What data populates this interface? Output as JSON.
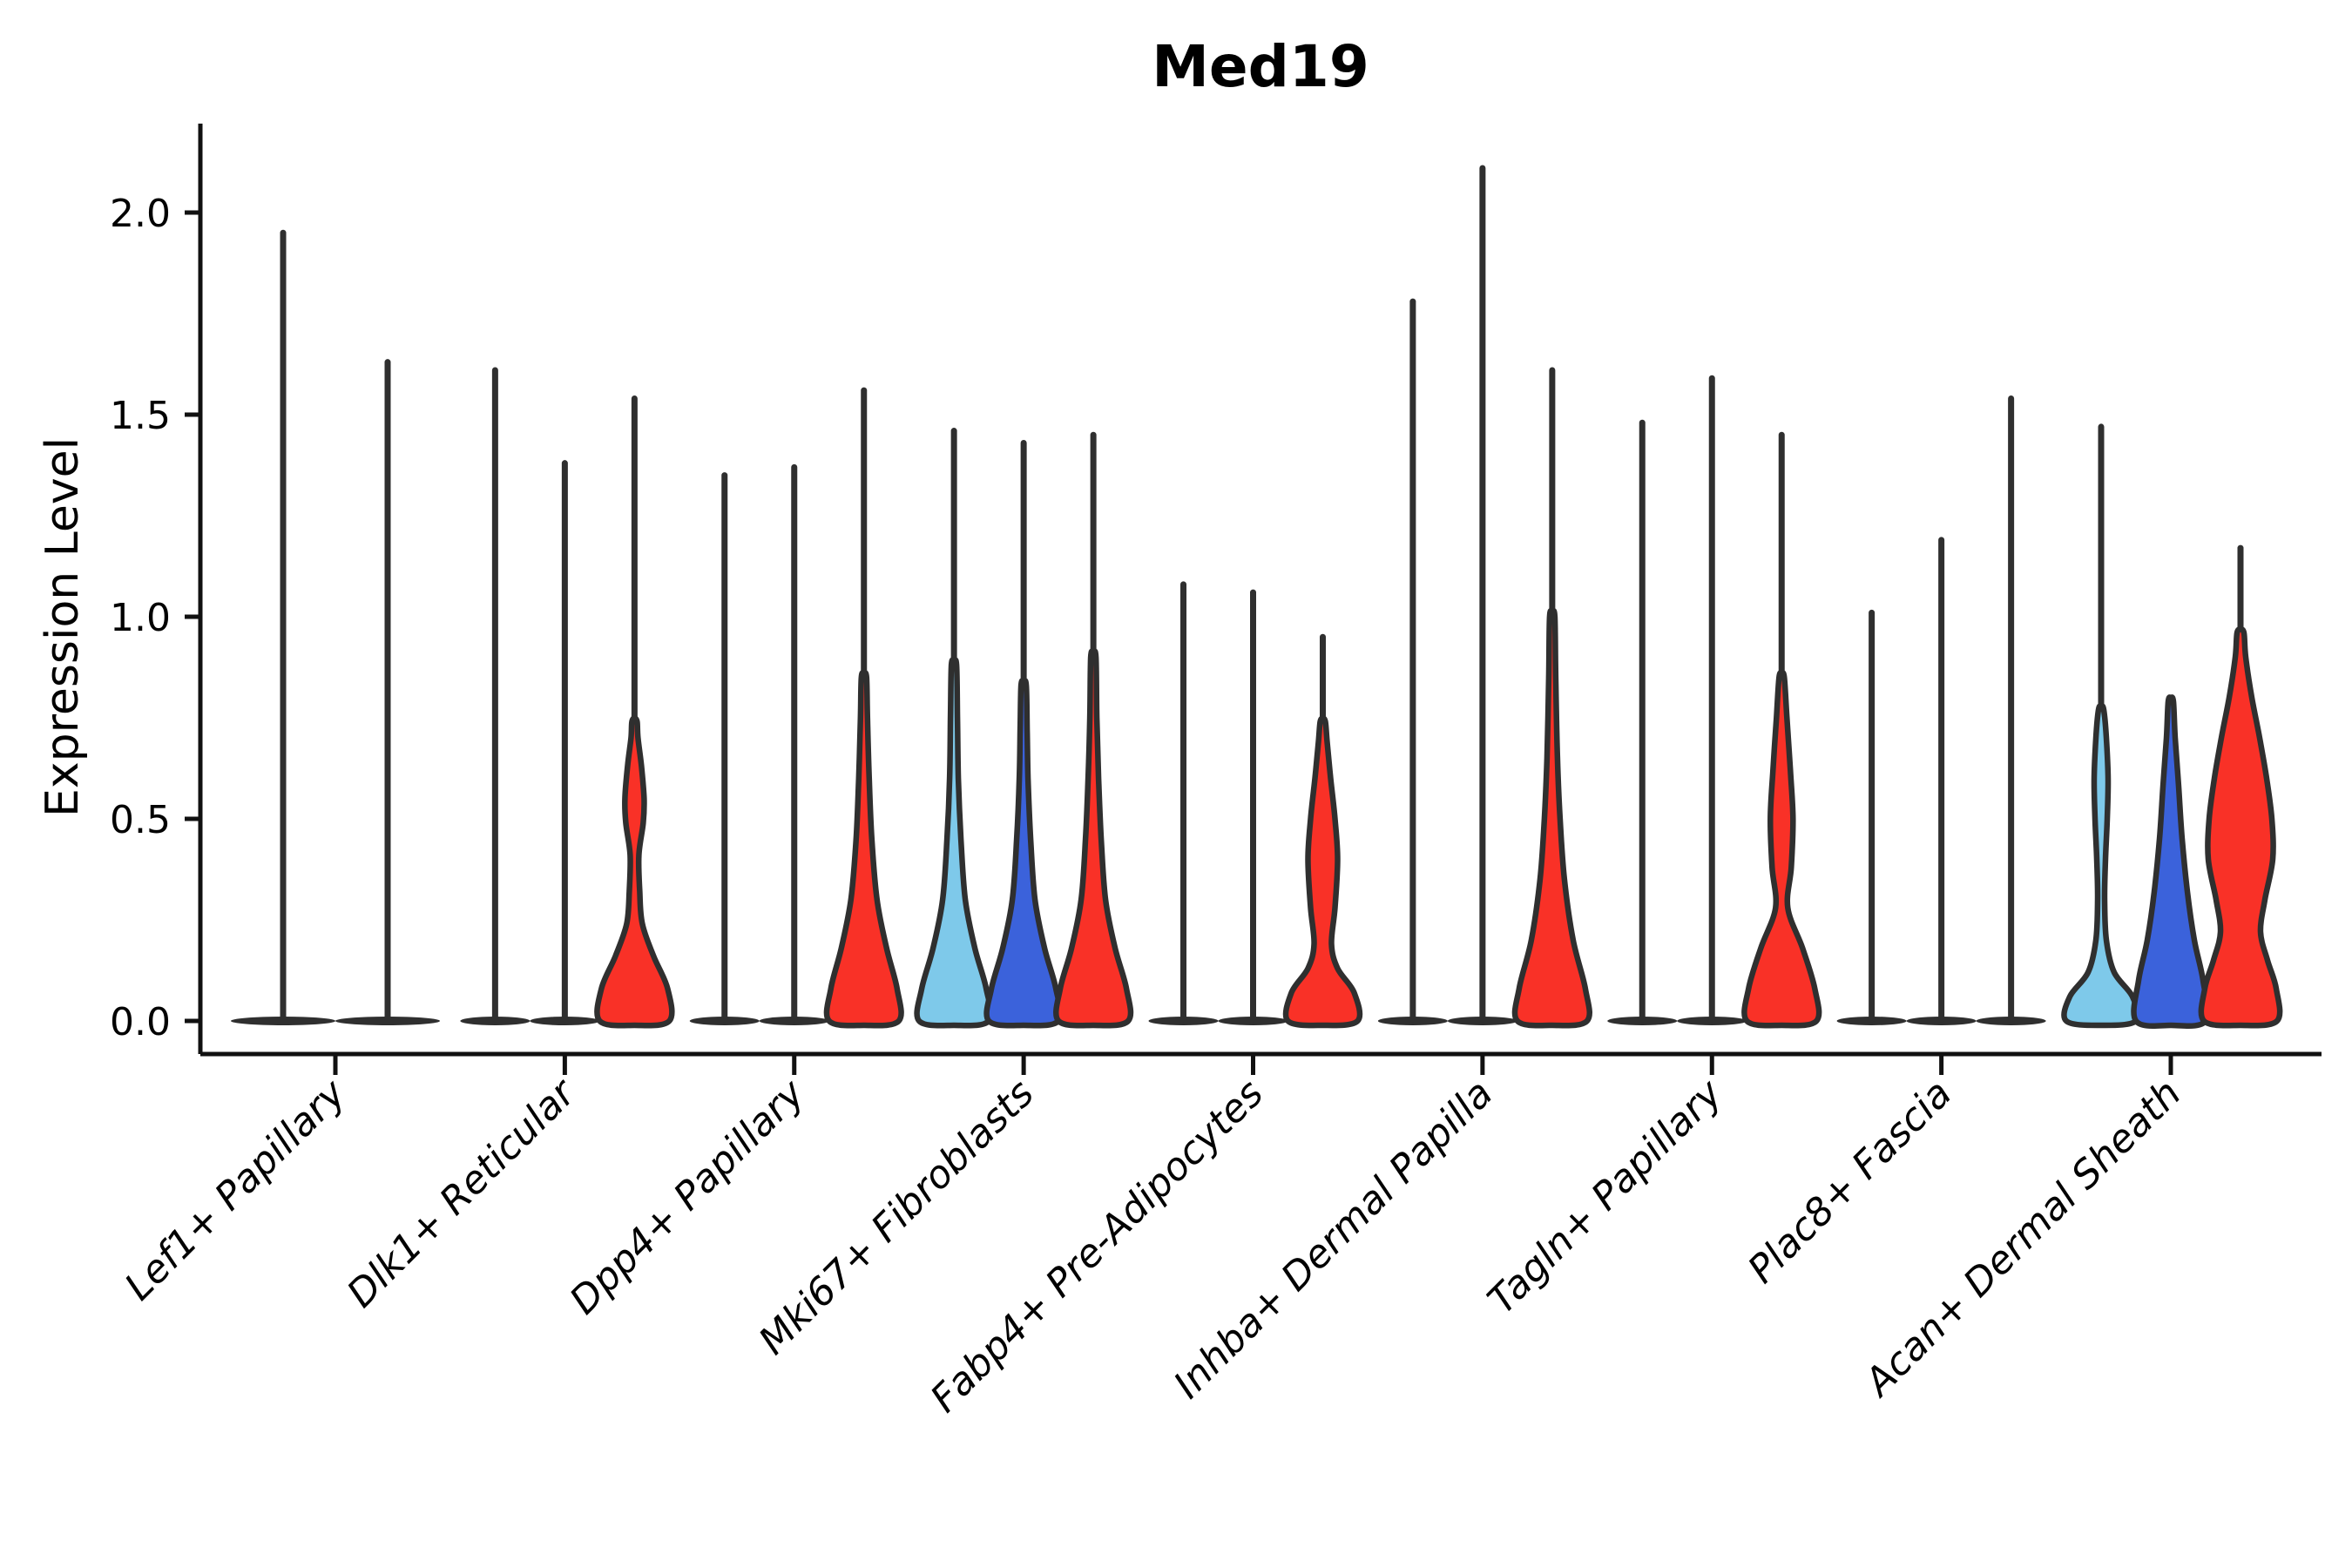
{
  "chart_data": {
    "type": "violin",
    "title": "Med19",
    "ylabel": "Expression Level",
    "xlabel": "",
    "yticks": [
      0.0,
      0.5,
      1.0,
      1.5,
      2.0
    ],
    "ylim": [
      -0.08,
      2.22
    ],
    "grid": false,
    "legend_position": "none",
    "colors": {
      "red": "#F93127",
      "skyblue": "#7EC9EA",
      "blue": "#3B62DB",
      "edge": "#2F2F2F",
      "axis": "#111111"
    },
    "categories": [
      "Lef1+ Papillary",
      "Dlk1+ Reticular",
      "Dpp4+ Papillary",
      "Mki67+ Fibroblasts",
      "Fabp4+ Pre-Adipocytes",
      "Inhba+ Dermal Papilla",
      "Tagln+ Papillary",
      "Plac8+ Fascia",
      "Acan+ Dermal Sheath"
    ],
    "groups": [
      {
        "category": "Lef1+ Papillary",
        "violins": [
          {
            "offset": -60,
            "max": 1.95,
            "fill": null,
            "base_hw": 60,
            "profile": null
          },
          {
            "offset": 60,
            "max": 1.63,
            "fill": null,
            "base_hw": 60,
            "profile": null
          }
        ]
      },
      {
        "category": "Dlk1+ Reticular",
        "violins": [
          {
            "offset": -80,
            "max": 1.61,
            "fill": null,
            "base_hw": 40,
            "profile": null
          },
          {
            "offset": 0,
            "max": 1.38,
            "fill": null,
            "base_hw": 40,
            "profile": null
          },
          {
            "offset": 80,
            "max": 1.54,
            "fill": "red",
            "base_hw": 40,
            "profile": [
              [
                0,
                40
              ],
              [
                0.08,
                38
              ],
              [
                0.16,
                22
              ],
              [
                0.24,
                9
              ],
              [
                0.32,
                6
              ],
              [
                0.41,
                5
              ],
              [
                0.49,
                10
              ],
              [
                0.55,
                11
              ],
              [
                0.63,
                8
              ],
              [
                0.7,
                4
              ],
              [
                0.74,
                3
              ]
            ]
          }
        ]
      },
      {
        "category": "Dpp4+ Papillary",
        "violins": [
          {
            "offset": -80,
            "max": 1.35,
            "fill": null,
            "base_hw": 40,
            "profile": null
          },
          {
            "offset": 0,
            "max": 1.37,
            "fill": null,
            "base_hw": 40,
            "profile": null
          },
          {
            "offset": 80,
            "max": 1.56,
            "fill": "red",
            "base_hw": 40,
            "profile": [
              [
                0,
                40
              ],
              [
                0.08,
                38
              ],
              [
                0.18,
                26
              ],
              [
                0.3,
                15
              ],
              [
                0.45,
                9
              ],
              [
                0.6,
                6
              ],
              [
                0.75,
                4
              ],
              [
                0.85,
                3
              ]
            ]
          }
        ]
      },
      {
        "category": "Mki67+ Fibroblasts",
        "violins": [
          {
            "offset": -80,
            "max": 1.46,
            "fill": "skyblue",
            "base_hw": 40,
            "profile": [
              [
                0,
                40
              ],
              [
                0.08,
                37
              ],
              [
                0.18,
                24
              ],
              [
                0.3,
                13
              ],
              [
                0.45,
                8
              ],
              [
                0.6,
                5
              ],
              [
                0.75,
                4
              ],
              [
                0.88,
                3
              ]
            ]
          },
          {
            "offset": 0,
            "max": 1.43,
            "fill": "blue",
            "base_hw": 40,
            "profile": [
              [
                0,
                40
              ],
              [
                0.08,
                37
              ],
              [
                0.18,
                24
              ],
              [
                0.3,
                13
              ],
              [
                0.45,
                8
              ],
              [
                0.6,
                5
              ],
              [
                0.72,
                4
              ],
              [
                0.83,
                3
              ]
            ]
          },
          {
            "offset": 80,
            "max": 1.45,
            "fill": "red",
            "base_hw": 40,
            "profile": [
              [
                0,
                40
              ],
              [
                0.08,
                38
              ],
              [
                0.18,
                25
              ],
              [
                0.3,
                14
              ],
              [
                0.45,
                9
              ],
              [
                0.6,
                6
              ],
              [
                0.75,
                4
              ],
              [
                0.9,
                3
              ]
            ]
          }
        ]
      },
      {
        "category": "Fabp4+ Pre-Adipocytes",
        "violins": [
          {
            "offset": -80,
            "max": 1.08,
            "fill": null,
            "base_hw": 40,
            "profile": null
          },
          {
            "offset": 0,
            "max": 1.06,
            "fill": null,
            "base_hw": 40,
            "profile": null
          },
          {
            "offset": 80,
            "max": 0.95,
            "fill": "red",
            "base_hw": 40,
            "profile": [
              [
                0,
                40
              ],
              [
                0.07,
                36
              ],
              [
                0.13,
                17
              ],
              [
                0.19,
                10
              ],
              [
                0.28,
                14
              ],
              [
                0.4,
                17
              ],
              [
                0.5,
                14
              ],
              [
                0.6,
                9
              ],
              [
                0.69,
                5
              ],
              [
                0.74,
                3
              ]
            ]
          }
        ]
      },
      {
        "category": "Inhba+ Dermal Papilla",
        "violins": [
          {
            "offset": -80,
            "max": 1.78,
            "fill": null,
            "base_hw": 40,
            "profile": null
          },
          {
            "offset": 0,
            "max": 2.11,
            "fill": null,
            "base_hw": 40,
            "profile": null
          },
          {
            "offset": 80,
            "max": 1.61,
            "fill": "red",
            "base_hw": 40,
            "profile": [
              [
                0,
                40
              ],
              [
                0.08,
                38
              ],
              [
                0.2,
                24
              ],
              [
                0.35,
                14
              ],
              [
                0.5,
                9
              ],
              [
                0.65,
                6
              ],
              [
                0.85,
                4
              ],
              [
                1.0,
                3
              ]
            ]
          }
        ]
      },
      {
        "category": "Tagln+ Papillary",
        "violins": [
          {
            "offset": -80,
            "max": 1.48,
            "fill": null,
            "base_hw": 40,
            "profile": null
          },
          {
            "offset": 0,
            "max": 1.59,
            "fill": null,
            "base_hw": 40,
            "profile": null
          },
          {
            "offset": 80,
            "max": 1.45,
            "fill": "red",
            "base_hw": 40,
            "profile": [
              [
                0,
                40
              ],
              [
                0.08,
                38
              ],
              [
                0.18,
                24
              ],
              [
                0.28,
                7
              ],
              [
                0.38,
                11
              ],
              [
                0.5,
                13
              ],
              [
                0.62,
                10
              ],
              [
                0.75,
                6
              ],
              [
                0.85,
                3
              ]
            ]
          }
        ]
      },
      {
        "category": "Plac8+ Fascia",
        "violins": [
          {
            "offset": -80,
            "max": 1.01,
            "fill": null,
            "base_hw": 40,
            "profile": null
          },
          {
            "offset": 0,
            "max": 1.19,
            "fill": null,
            "base_hw": 40,
            "profile": null
          },
          {
            "offset": 80,
            "max": 1.54,
            "fill": null,
            "base_hw": 40,
            "profile": null
          }
        ]
      },
      {
        "category": "Acan+ Dermal Sheath",
        "violins": [
          {
            "offset": -80,
            "max": 1.47,
            "fill": "skyblue",
            "base_hw": 40,
            "profile": [
              [
                0,
                40
              ],
              [
                0.06,
                36
              ],
              [
                0.12,
                15
              ],
              [
                0.2,
                6
              ],
              [
                0.3,
                4
              ],
              [
                0.4,
                5
              ],
              [
                0.5,
                7
              ],
              [
                0.6,
                8
              ],
              [
                0.7,
                6
              ],
              [
                0.77,
                3
              ]
            ]
          },
          {
            "offset": 0,
            "max": 0.8,
            "fill": "blue",
            "base_hw": 40,
            "profile": [
              [
                0,
                40
              ],
              [
                0.1,
                37
              ],
              [
                0.2,
                27
              ],
              [
                0.32,
                19
              ],
              [
                0.45,
                13
              ],
              [
                0.58,
                9
              ],
              [
                0.7,
                5
              ],
              [
                0.79,
                3
              ]
            ]
          },
          {
            "offset": 80,
            "max": 1.17,
            "fill": "red",
            "base_hw": 42,
            "profile": [
              [
                0,
                42
              ],
              [
                0.08,
                41
              ],
              [
                0.15,
                31
              ],
              [
                0.22,
                23
              ],
              [
                0.3,
                28
              ],
              [
                0.4,
                37
              ],
              [
                0.5,
                36
              ],
              [
                0.6,
                30
              ],
              [
                0.7,
                22
              ],
              [
                0.8,
                13
              ],
              [
                0.9,
                6
              ],
              [
                0.96,
                4
              ]
            ]
          }
        ]
      }
    ]
  }
}
